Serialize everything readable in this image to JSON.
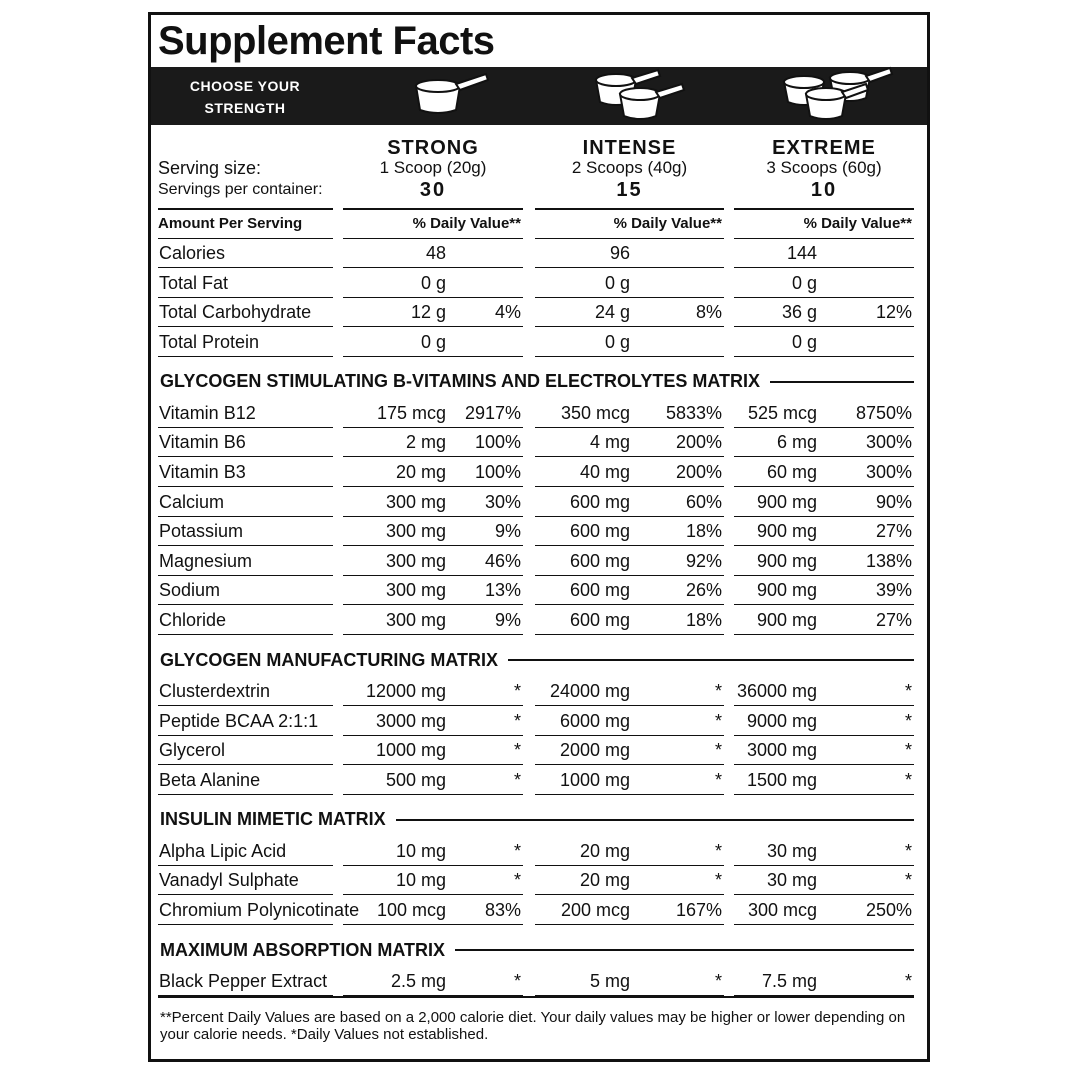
{
  "title": "Supplement Facts",
  "strength_label": "CHOOSE YOUR STRENGTH",
  "serving_size_label": "Serving size:",
  "servings_per_container_label": "Servings per container:",
  "levels": [
    {
      "name": "STRONG",
      "serving": "1 Scoop (20g)",
      "servings": 30
    },
    {
      "name": "INTENSE",
      "serving": "2 Scoops (40g)",
      "servings": 15
    },
    {
      "name": "EXTREME",
      "serving": "3 Scoops (60g)",
      "servings": 10
    }
  ],
  "amount_header": "Amount Per Serving",
  "dv_header": "% Daily Value**",
  "basic_rows": [
    {
      "label": "Calories",
      "cells": [
        [
          48,
          null
        ],
        [
          96,
          null
        ],
        [
          144,
          null
        ]
      ]
    },
    {
      "label": "Total Fat",
      "cells": [
        [
          "0 g",
          null
        ],
        [
          "0 g",
          null
        ],
        [
          "0 g",
          null
        ]
      ]
    },
    {
      "label": "Total Carbohydrate",
      "cells": [
        [
          "12 g",
          "4%"
        ],
        [
          "24 g",
          "8%"
        ],
        [
          "36 g",
          "12%"
        ]
      ]
    },
    {
      "label": "Total Protein",
      "cells": [
        [
          "0 g",
          null
        ],
        [
          "0 g",
          null
        ],
        [
          "0 g",
          null
        ]
      ]
    }
  ],
  "sections": [
    {
      "title": "GLYCOGEN STIMULATING B-VITAMINS AND ELECTROLYTES MATRIX",
      "rows": [
        {
          "label": "Vitamin B12",
          "cells": [
            [
              "175 mcg",
              "2917%"
            ],
            [
              "350 mcg",
              "5833%"
            ],
            [
              "525 mcg",
              "8750%"
            ]
          ]
        },
        {
          "label": "Vitamin B6",
          "cells": [
            [
              "2 mg",
              "100%"
            ],
            [
              "4 mg",
              "200%"
            ],
            [
              "6 mg",
              "300%"
            ]
          ]
        },
        {
          "label": "Vitamin B3",
          "cells": [
            [
              "20 mg",
              "100%"
            ],
            [
              "40 mg",
              "200%"
            ],
            [
              "60 mg",
              "300%"
            ]
          ]
        },
        {
          "label": "Calcium",
          "cells": [
            [
              "300 mg",
              "30%"
            ],
            [
              "600 mg",
              "60%"
            ],
            [
              "900 mg",
              "90%"
            ]
          ]
        },
        {
          "label": "Potassium",
          "cells": [
            [
              "300 mg",
              "9%"
            ],
            [
              "600 mg",
              "18%"
            ],
            [
              "900 mg",
              "27%"
            ]
          ]
        },
        {
          "label": "Magnesium",
          "cells": [
            [
              "300 mg",
              "46%"
            ],
            [
              "600 mg",
              "92%"
            ],
            [
              "900 mg",
              "138%"
            ]
          ]
        },
        {
          "label": "Sodium",
          "cells": [
            [
              "300 mg",
              "13%"
            ],
            [
              "600 mg",
              "26%"
            ],
            [
              "900 mg",
              "39%"
            ]
          ]
        },
        {
          "label": "Chloride",
          "cells": [
            [
              "300 mg",
              "9%"
            ],
            [
              "600 mg",
              "18%"
            ],
            [
              "900 mg",
              "27%"
            ]
          ]
        }
      ]
    },
    {
      "title": "GLYCOGEN MANUFACTURING MATRIX",
      "rows": [
        {
          "label": "Clusterdextrin",
          "cells": [
            [
              "12000 mg",
              "*"
            ],
            [
              "24000 mg",
              "*"
            ],
            [
              "36000 mg",
              "*"
            ]
          ]
        },
        {
          "label": "Peptide BCAA 2:1:1",
          "cells": [
            [
              "3000 mg",
              "*"
            ],
            [
              "6000 mg",
              "*"
            ],
            [
              "9000 mg",
              "*"
            ]
          ]
        },
        {
          "label": "Glycerol",
          "cells": [
            [
              "1000 mg",
              "*"
            ],
            [
              "2000 mg",
              "*"
            ],
            [
              "3000 mg",
              "*"
            ]
          ]
        },
        {
          "label": "Beta Alanine",
          "cells": [
            [
              "500 mg",
              "*"
            ],
            [
              "1000 mg",
              "*"
            ],
            [
              "1500 mg",
              "*"
            ]
          ]
        }
      ]
    },
    {
      "title": "INSULIN MIMETIC MATRIX",
      "rows": [
        {
          "label": "Alpha Lipic Acid",
          "cells": [
            [
              "10 mg",
              "*"
            ],
            [
              "20 mg",
              "*"
            ],
            [
              "30 mg",
              "*"
            ]
          ]
        },
        {
          "label": "Vanadyl Sulphate",
          "cells": [
            [
              "10 mg",
              "*"
            ],
            [
              "20 mg",
              "*"
            ],
            [
              "30 mg",
              "*"
            ]
          ]
        },
        {
          "label": "Chromium Polynicotinate",
          "cells": [
            [
              "100 mcg",
              "83%"
            ],
            [
              "200 mcg",
              "167%"
            ],
            [
              "300 mcg",
              "250%"
            ]
          ]
        }
      ]
    },
    {
      "title": "MAXIMUM ABSORPTION MATRIX",
      "rows": [
        {
          "label": "Black Pepper Extract",
          "cells": [
            [
              "2.5 mg",
              "*"
            ],
            [
              "5 mg",
              "*"
            ],
            [
              "7.5 mg",
              "*"
            ]
          ]
        }
      ]
    }
  ],
  "footnote": "**Percent Daily Values are based on a 2,000 calorie diet. Your daily values may be higher or lower depending on your calorie needs. *Daily Values not established."
}
